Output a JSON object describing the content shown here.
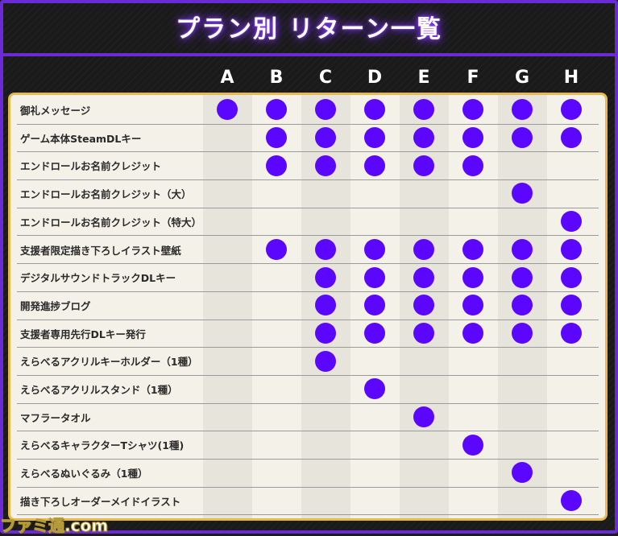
{
  "title": "プラン別 リターン一覧",
  "plans": [
    "A",
    "B",
    "C",
    "D",
    "E",
    "F",
    "G",
    "H"
  ],
  "rows": [
    {
      "label": "御礼メッセージ",
      "plans": [
        1,
        1,
        1,
        1,
        1,
        1,
        1,
        1
      ]
    },
    {
      "label": "ゲーム本体SteamDLキー",
      "plans": [
        0,
        1,
        1,
        1,
        1,
        1,
        1,
        1
      ]
    },
    {
      "label": "エンドロールお名前クレジット",
      "plans": [
        0,
        1,
        1,
        1,
        1,
        1,
        0,
        0
      ]
    },
    {
      "label": "エンドロールお名前クレジット（大）",
      "plans": [
        0,
        0,
        0,
        0,
        0,
        0,
        1,
        0
      ]
    },
    {
      "label": "エンドロールお名前クレジット（特大）",
      "plans": [
        0,
        0,
        0,
        0,
        0,
        0,
        0,
        1
      ]
    },
    {
      "label": "支援者限定描き下ろしイラスト壁紙",
      "plans": [
        0,
        1,
        1,
        1,
        1,
        1,
        1,
        1
      ]
    },
    {
      "label": "デジタルサウンドトラックDLキー",
      "plans": [
        0,
        0,
        1,
        1,
        1,
        1,
        1,
        1
      ]
    },
    {
      "label": "開発進捗ブログ",
      "plans": [
        0,
        0,
        1,
        1,
        1,
        1,
        1,
        1
      ]
    },
    {
      "label": "支援者専用先行DLキー発行",
      "plans": [
        0,
        0,
        1,
        1,
        1,
        1,
        1,
        1
      ]
    },
    {
      "label": "えらべるアクリルキーホルダー（1種）",
      "plans": [
        0,
        0,
        1,
        0,
        0,
        0,
        0,
        0
      ]
    },
    {
      "label": "えらべるアクリルスタンド（1種）",
      "plans": [
        0,
        0,
        0,
        1,
        0,
        0,
        0,
        0
      ]
    },
    {
      "label": "マフラータオル",
      "plans": [
        0,
        0,
        0,
        0,
        1,
        0,
        0,
        0
      ]
    },
    {
      "label": "えらべるキャラクターTシャツ(1種)",
      "plans": [
        0,
        0,
        0,
        0,
        0,
        1,
        0,
        0
      ]
    },
    {
      "label": "えらべるぬいぐるみ（1種）",
      "plans": [
        0,
        0,
        0,
        0,
        0,
        0,
        1,
        0
      ]
    },
    {
      "label": "描き下ろしオーダーメイドイラスト",
      "plans": [
        0,
        0,
        0,
        0,
        0,
        0,
        0,
        1
      ]
    }
  ],
  "colors": {
    "dot": "#5b06ff",
    "border": "#6a2bd6",
    "table_border": "#e7b94a"
  },
  "watermark": "ファミ通.com"
}
